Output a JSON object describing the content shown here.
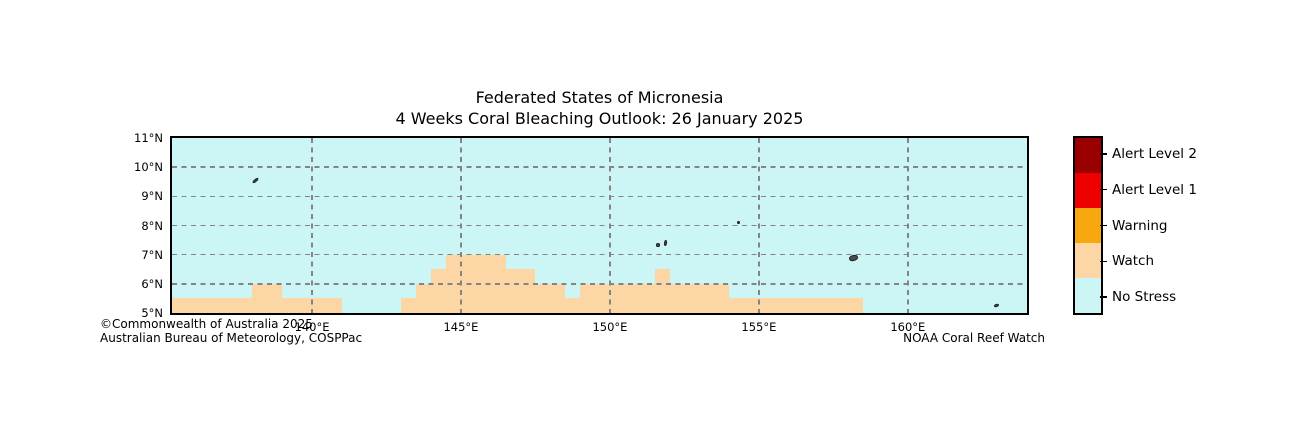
{
  "title": {
    "line1": "Federated States of Micronesia",
    "line2": "4 Weeks Coral Bleaching Outlook: 26 January 2025"
  },
  "credits": {
    "copyright_line1": "©Commonwealth of Australia 2025",
    "copyright_line2": "Australian Bureau of Meteorology, COSPPac",
    "right_attribution": "NOAA Coral Reef Watch"
  },
  "legend": {
    "items": [
      {
        "label": "Alert Level 2",
        "color": "#9a0000"
      },
      {
        "label": "Alert Level 1",
        "color": "#ee0000"
      },
      {
        "label": "Warning",
        "color": "#f7a80e"
      },
      {
        "label": "Watch",
        "color": "#fcd6a4"
      },
      {
        "label": "No Stress",
        "color": "#ccf6f5"
      }
    ]
  },
  "chart_data": {
    "type": "heatmap",
    "title": "Federated States of Micronesia — 4 Weeks Coral Bleaching Outlook: 26 January 2025",
    "legend_categories": [
      "Alert Level 2",
      "Alert Level 1",
      "Warning",
      "Watch",
      "No Stress"
    ],
    "lon_range": [
      135.3,
      164.0
    ],
    "lat_range": [
      5,
      11
    ],
    "resolution_deg": 0.5,
    "background_level": "No Stress",
    "no_stress_color": "#ccf6f5",
    "watch_color": "#fcd6a4",
    "island_color": "#4c4c4c",
    "x_ticks": [
      {
        "value": 140,
        "label": "140°E"
      },
      {
        "value": 145,
        "label": "145°E"
      },
      {
        "value": 150,
        "label": "150°E"
      },
      {
        "value": 155,
        "label": "155°E"
      },
      {
        "value": 160,
        "label": "160°E"
      }
    ],
    "y_ticks": [
      {
        "value": 5,
        "label": "5°N"
      },
      {
        "value": 6,
        "label": "6°N"
      },
      {
        "value": 7,
        "label": "7°N"
      },
      {
        "value": 8,
        "label": "8°N"
      },
      {
        "value": 9,
        "label": "9°N"
      },
      {
        "value": 10,
        "label": "10°N"
      },
      {
        "value": 11,
        "label": "11°N"
      }
    ],
    "gridlines": {
      "vertical_lons": [
        140,
        145,
        150,
        155,
        160
      ],
      "horizontal_lats": [
        6,
        7,
        8,
        9,
        10
      ],
      "style": "dashed",
      "color": "#848484"
    },
    "watch_cells": [
      {
        "lat_min": 5.0,
        "lat_max": 5.5,
        "lon_min": 135.3,
        "lon_max": 141.0
      },
      {
        "lat_min": 5.0,
        "lat_max": 5.5,
        "lon_min": 143.0,
        "lon_max": 158.5
      },
      {
        "lat_min": 5.5,
        "lat_max": 6.0,
        "lon_min": 138.0,
        "lon_max": 139.0
      },
      {
        "lat_min": 5.5,
        "lat_max": 6.0,
        "lon_min": 143.5,
        "lon_max": 148.5
      },
      {
        "lat_min": 5.5,
        "lat_max": 6.0,
        "lon_min": 149.0,
        "lon_max": 154.0
      },
      {
        "lat_min": 6.0,
        "lat_max": 6.5,
        "lon_min": 144.0,
        "lon_max": 147.5
      },
      {
        "lat_min": 6.0,
        "lat_max": 6.5,
        "lon_min": 151.5,
        "lon_max": 152.0
      },
      {
        "lat_min": 6.5,
        "lat_max": 7.0,
        "lon_min": 144.5,
        "lon_max": 146.5
      }
    ],
    "islands": [
      {
        "lon": 138.1,
        "lat": 9.56,
        "w": 7,
        "h": 3,
        "rotate": -40
      },
      {
        "lon": 151.63,
        "lat": 7.33,
        "w": 4,
        "h": 4,
        "rotate": 0
      },
      {
        "lon": 151.85,
        "lat": 7.39,
        "w": 3,
        "h": 6,
        "rotate": 8
      },
      {
        "lon": 154.3,
        "lat": 8.1,
        "w": 3,
        "h": 3,
        "rotate": 0
      },
      {
        "lon": 158.19,
        "lat": 6.87,
        "w": 9,
        "h": 6,
        "rotate": -15
      },
      {
        "lon": 162.96,
        "lat": 5.27,
        "w": 5,
        "h": 3,
        "rotate": -20
      }
    ]
  }
}
